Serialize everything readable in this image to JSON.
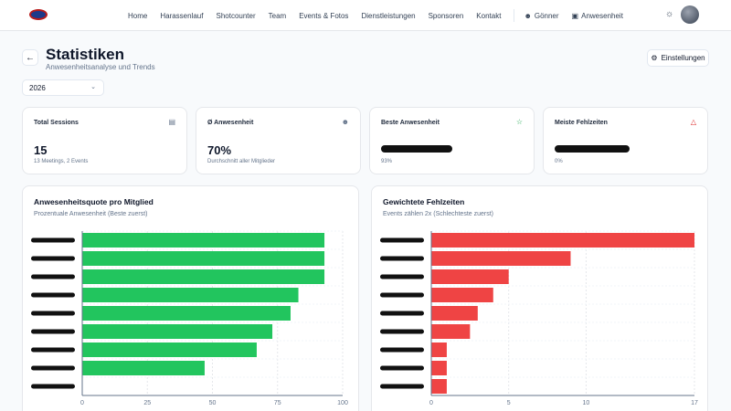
{
  "nav": {
    "items": [
      "Home",
      "Harassenlauf",
      "Shotcounter",
      "Team",
      "Events & Fotos",
      "Dienstleistungen",
      "Sponsoren",
      "Kontakt"
    ],
    "goenner": "Gönner",
    "anwesenheit": "Anwesenheit"
  },
  "page": {
    "title": "Statistiken",
    "subtitle": "Anwesenheitsanalyse und Trends",
    "settings_label": "Einstellungen",
    "year": "2026"
  },
  "cards": [
    {
      "label": "Total Sessions",
      "value": "15",
      "sub": "13 Meetings, 2 Events",
      "icon": "calendar-icon"
    },
    {
      "label": "Ø Anwesenheit",
      "value": "70%",
      "sub": "Durchschnitt aller Mitglieder",
      "icon": "users-icon"
    },
    {
      "label": "Beste Anwesenheit",
      "value": "",
      "sub": "93%",
      "icon": "trophy-icon"
    },
    {
      "label": "Meiste Fehlzeiten",
      "value": "",
      "sub": "0%",
      "icon": "alert-icon"
    }
  ],
  "colors": {
    "green": "#22c55e",
    "red": "#ef4444",
    "trophy": "#16a34a",
    "alert": "#dc2626"
  },
  "chart_data": [
    {
      "type": "bar",
      "orientation": "horizontal",
      "title": "Anwesenheitsquote pro Mitglied",
      "subtitle": "Prozentuale Anwesenheit (Beste zuerst)",
      "xlim": [
        0,
        100
      ],
      "xticks": [
        "0",
        "25",
        "50",
        "75",
        "100"
      ],
      "values": [
        93,
        93,
        93,
        83,
        80,
        73,
        67,
        47,
        null
      ]
    },
    {
      "type": "bar",
      "orientation": "horizontal",
      "title": "Gewichtete Fehlzeiten",
      "subtitle": "Events zählen 2x (Schlechteste zuerst)",
      "xlim": [
        0,
        17
      ],
      "xticks": [
        "0",
        "5",
        "10",
        "17"
      ],
      "values": [
        17,
        9,
        5,
        4,
        3,
        2.5,
        1,
        1,
        1
      ]
    }
  ]
}
